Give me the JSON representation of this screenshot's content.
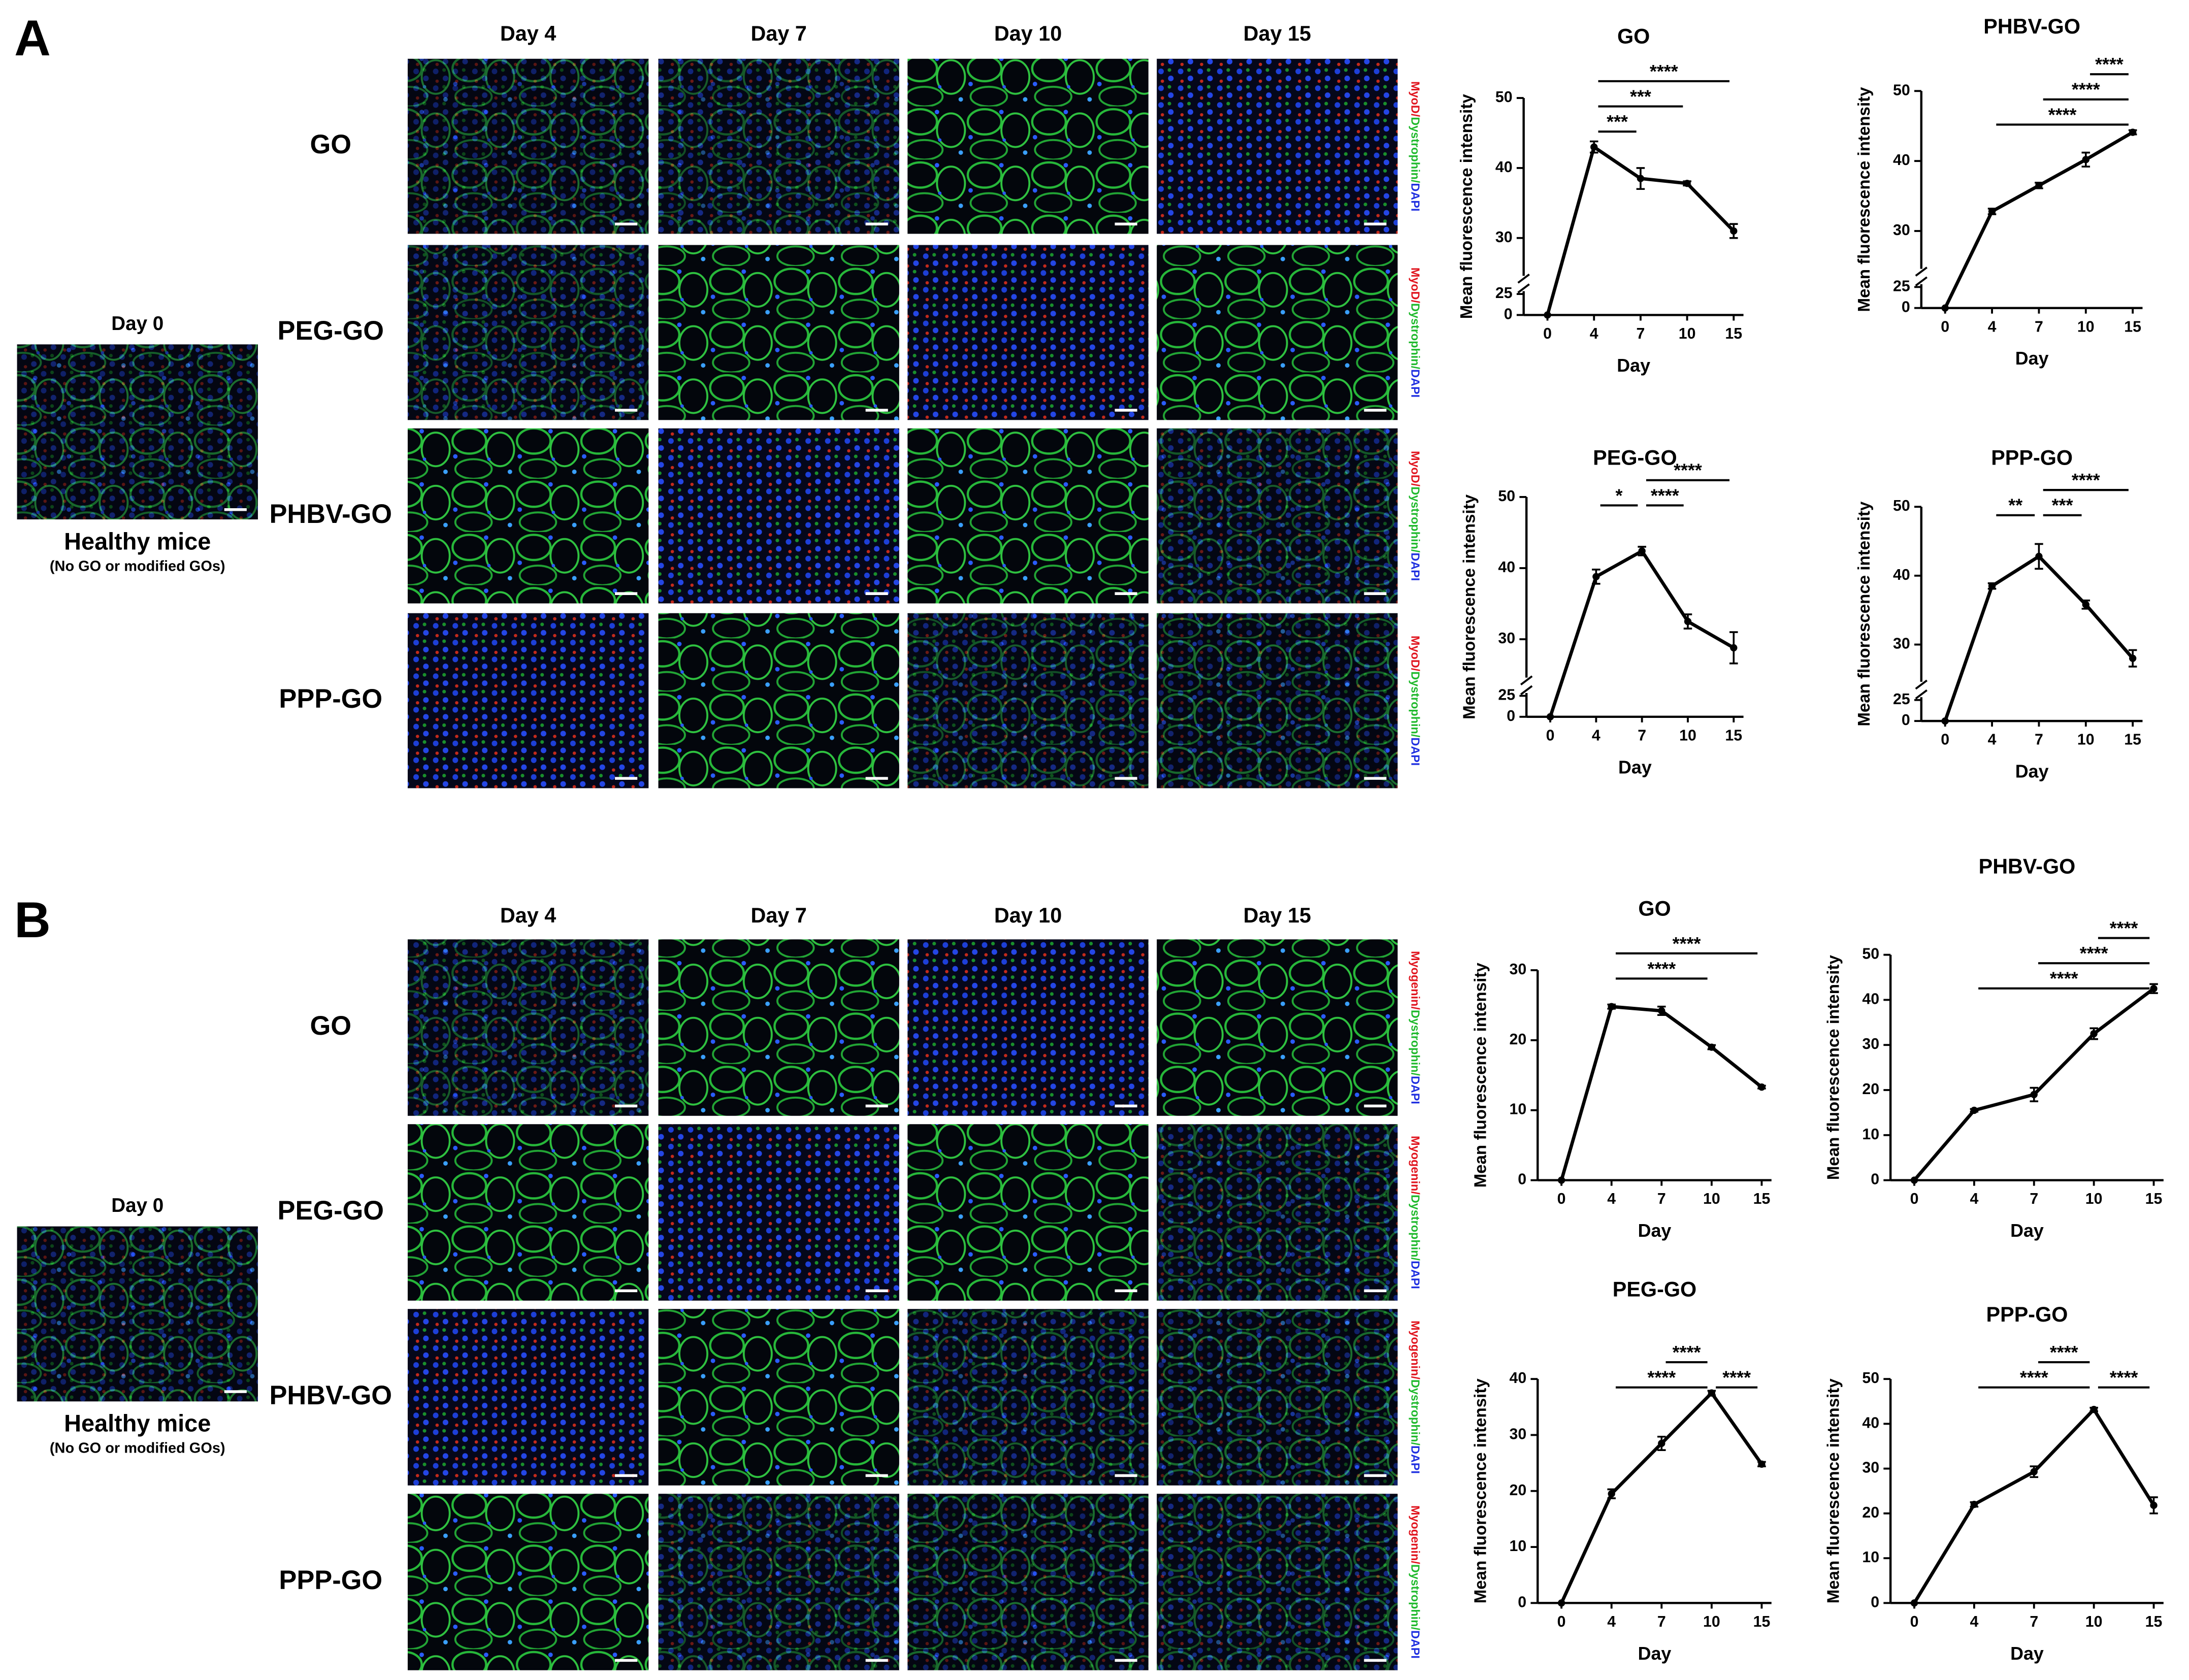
{
  "panels": [
    {
      "label": "A",
      "days": [
        "Day 4",
        "Day 7",
        "Day 10",
        "Day 15"
      ],
      "rows": [
        "GO",
        "PEG-GO",
        "PHBV-GO",
        "PPP-GO"
      ],
      "stain": [
        "MyoD/",
        "Dystrophin/",
        "DAPI"
      ],
      "control": {
        "day": "Day 0",
        "title": "Healthy mice",
        "subtitle": "(No GO or modified GOs)"
      }
    },
    {
      "label": "B",
      "days": [
        "Day 4",
        "Day 7",
        "Day 10",
        "Day 15"
      ],
      "rows": [
        "GO",
        "PEG-GO",
        "PHBV-GO",
        "PPP-GO"
      ],
      "stain": [
        "Myogenin/",
        "Dystrophin/",
        "DAPI"
      ],
      "control": {
        "day": "Day 0",
        "title": "Healthy mice",
        "subtitle": "(No GO or modified GOs)"
      }
    }
  ],
  "chart_data": [
    {
      "type": "line",
      "title": "GO",
      "xlabel": "Day",
      "ylabel": "Mean fluorescence intensity",
      "categories": [
        "0",
        "4",
        "7",
        "10",
        "15"
      ],
      "values": [
        0,
        43,
        38.5,
        37.8,
        31
      ],
      "errors": [
        0,
        0.8,
        1.5,
        0.3,
        1
      ],
      "color": "#000000",
      "ylim": [
        0,
        50
      ],
      "yticks": [
        0,
        25,
        30,
        40,
        50
      ],
      "axis_break": true,
      "annotations": [
        {
          "text": "***",
          "between": [
            "4",
            "7"
          ]
        },
        {
          "text": "***",
          "between": [
            "4",
            "10"
          ]
        },
        {
          "text": "****",
          "between": [
            "4",
            "15"
          ]
        }
      ]
    },
    {
      "type": "line",
      "title": "PHBV-GO",
      "xlabel": "Day",
      "ylabel": "Mean fluorescence intensity",
      "categories": [
        "0",
        "4",
        "7",
        "10",
        "15"
      ],
      "values": [
        0,
        32.8,
        36.5,
        40.2,
        44.1
      ],
      "errors": [
        0,
        0.4,
        0.4,
        1,
        0.3
      ],
      "color": "#000000",
      "ylim": [
        0,
        50
      ],
      "yticks": [
        0,
        25,
        30,
        40,
        50
      ],
      "axis_break": true,
      "annotations": [
        {
          "text": "****",
          "between": [
            "4",
            "15"
          ]
        },
        {
          "text": "****",
          "between": [
            "7",
            "15"
          ]
        },
        {
          "text": "****",
          "between": [
            "10",
            "15"
          ]
        }
      ]
    },
    {
      "type": "line",
      "title": "PEG-GO",
      "xlabel": "Day",
      "ylabel": "Mean fluorescence intensity",
      "categories": [
        "0",
        "4",
        "7",
        "10",
        "15"
      ],
      "values": [
        0,
        38.8,
        42.4,
        32.5,
        28.8
      ],
      "errors": [
        0,
        1,
        0.6,
        1,
        2.2
      ],
      "color": "#000000",
      "ylim": [
        0,
        50
      ],
      "yticks": [
        0,
        25,
        30,
        40,
        50
      ],
      "axis_break": true,
      "annotations": [
        {
          "text": "*",
          "between": [
            "4",
            "7"
          ]
        },
        {
          "text": "****",
          "between": [
            "7",
            "10"
          ]
        },
        {
          "text": "****",
          "between": [
            "7",
            "15"
          ]
        }
      ]
    },
    {
      "type": "line",
      "title": "PPP-GO",
      "xlabel": "Day",
      "ylabel": "Mean fluorescence intensity",
      "categories": [
        "0",
        "4",
        "7",
        "10",
        "15"
      ],
      "values": [
        0,
        38.5,
        42.8,
        35.8,
        28
      ],
      "errors": [
        0,
        0.4,
        1.8,
        0.6,
        1.2
      ],
      "color": "#000000",
      "ylim": [
        0,
        50
      ],
      "yticks": [
        0,
        25,
        30,
        40,
        50
      ],
      "axis_break": true,
      "annotations": [
        {
          "text": "**",
          "between": [
            "4",
            "7"
          ]
        },
        {
          "text": "***",
          "between": [
            "7",
            "10"
          ]
        },
        {
          "text": "****",
          "between": [
            "7",
            "15"
          ]
        }
      ]
    },
    {
      "type": "line",
      "title": "GO",
      "xlabel": "Day",
      "ylabel": "Mean fluorescence intensity",
      "categories": [
        "0",
        "4",
        "7",
        "10",
        "15"
      ],
      "values": [
        0,
        24.8,
        24.2,
        19,
        13.3
      ],
      "errors": [
        0,
        0.3,
        0.6,
        0.3,
        0.2
      ],
      "color": "#000000",
      "ylim": [
        0,
        30
      ],
      "yticks": [
        0,
        10,
        20,
        30
      ],
      "axis_break": false,
      "annotations": [
        {
          "text": "****",
          "between": [
            "4",
            "10"
          ]
        },
        {
          "text": "****",
          "between": [
            "4",
            "15"
          ]
        }
      ]
    },
    {
      "type": "line",
      "title": "PHBV-GO",
      "xlabel": "Day",
      "ylabel": "Mean fluorescence intensity",
      "categories": [
        "0",
        "4",
        "7",
        "10",
        "15"
      ],
      "values": [
        0,
        15.5,
        19,
        32.5,
        42.5
      ],
      "errors": [
        0,
        0.3,
        1.5,
        1.2,
        1
      ],
      "color": "#000000",
      "ylim": [
        0,
        50
      ],
      "yticks": [
        0,
        10,
        20,
        30,
        40,
        50
      ],
      "axis_break": false,
      "annotations": [
        {
          "text": "****",
          "between": [
            "4",
            "15"
          ]
        },
        {
          "text": "****",
          "between": [
            "7",
            "15"
          ]
        },
        {
          "text": "****",
          "between": [
            "10",
            "15"
          ]
        }
      ]
    },
    {
      "type": "line",
      "title": "PEG-GO",
      "xlabel": "Day",
      "ylabel": "Mean fluorescence intensity",
      "categories": [
        "0",
        "4",
        "7",
        "10",
        "15"
      ],
      "values": [
        0,
        19.5,
        28.5,
        37.5,
        24.8
      ],
      "errors": [
        0,
        0.8,
        1.2,
        0.4,
        0.4
      ],
      "color": "#000000",
      "ylim": [
        0,
        40
      ],
      "yticks": [
        0,
        10,
        20,
        30,
        40
      ],
      "axis_break": false,
      "annotations": [
        {
          "text": "****",
          "between": [
            "4",
            "10"
          ]
        },
        {
          "text": "****",
          "between": [
            "7",
            "10"
          ]
        },
        {
          "text": "****",
          "between": [
            "10",
            "15"
          ]
        }
      ]
    },
    {
      "type": "line",
      "title": "PPP-GO",
      "xlabel": "Day",
      "ylabel": "Mean fluorescence intensity",
      "categories": [
        "0",
        "4",
        "7",
        "10",
        "15"
      ],
      "values": [
        0,
        22,
        29.3,
        43.2,
        21.8
      ],
      "errors": [
        0,
        0.5,
        1.2,
        0.4,
        1.8
      ],
      "color": "#000000",
      "ylim": [
        0,
        50
      ],
      "yticks": [
        0,
        10,
        20,
        30,
        40,
        50
      ],
      "axis_break": false,
      "annotations": [
        {
          "text": "****",
          "between": [
            "4",
            "10"
          ]
        },
        {
          "text": "****",
          "between": [
            "7",
            "10"
          ]
        },
        {
          "text": "****",
          "between": [
            "10",
            "15"
          ]
        }
      ]
    }
  ]
}
